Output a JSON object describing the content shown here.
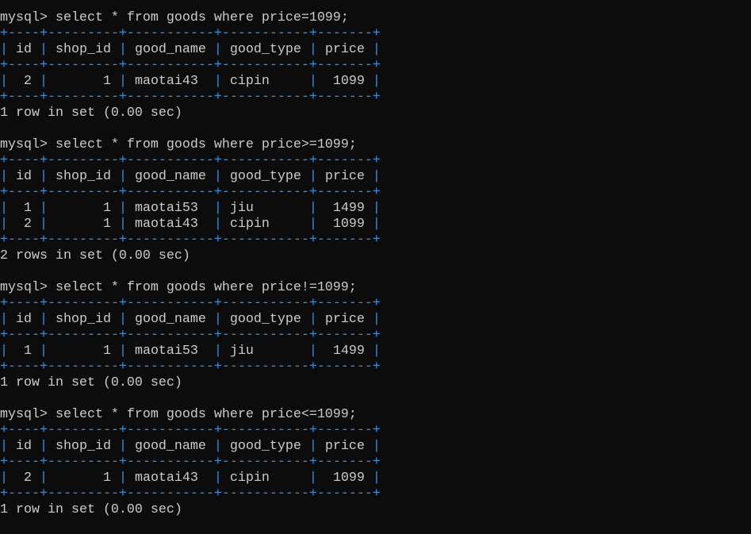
{
  "prompt": "mysql> ",
  "colors": {
    "background": "#0c0c0c",
    "text": "#cccccc",
    "table_border": "#3a8fd6"
  },
  "queries": [
    {
      "sql": "select * from goods where price=1099;",
      "columns": [
        "id",
        "shop_id",
        "good_name",
        "good_type",
        "price"
      ],
      "rows": [
        [
          "2",
          "1",
          "maotai43",
          "cipin",
          "1099"
        ]
      ],
      "result": "1 row in set (0.00 sec)"
    },
    {
      "sql": "select * from goods where price>=1099;",
      "columns": [
        "id",
        "shop_id",
        "good_name",
        "good_type",
        "price"
      ],
      "rows": [
        [
          "1",
          "1",
          "maotai53",
          "jiu",
          "1499"
        ],
        [
          "2",
          "1",
          "maotai43",
          "cipin",
          "1099"
        ]
      ],
      "result": "2 rows in set (0.00 sec)"
    },
    {
      "sql": "select * from goods where price!=1099;",
      "columns": [
        "id",
        "shop_id",
        "good_name",
        "good_type",
        "price"
      ],
      "rows": [
        [
          "1",
          "1",
          "maotai53",
          "jiu",
          "1499"
        ]
      ],
      "result": "1 row in set (0.00 sec)"
    },
    {
      "sql": "select * from goods where price<=1099;",
      "columns": [
        "id",
        "shop_id",
        "good_name",
        "good_type",
        "price"
      ],
      "rows": [
        [
          "2",
          "1",
          "maotai43",
          "cipin",
          "1099"
        ]
      ],
      "result": "1 row in set (0.00 sec)"
    }
  ]
}
